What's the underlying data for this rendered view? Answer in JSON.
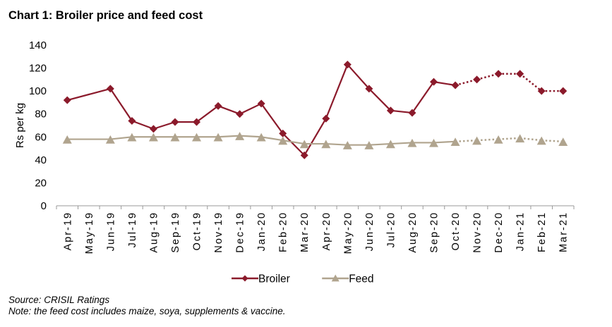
{
  "title": "Chart 1: Broiler price and feed cost",
  "source": "Source: CRISIL Ratings",
  "note": "Note: the feed cost includes maize, soya, supplements & vaccine.",
  "chart_data": {
    "type": "line",
    "title": "Chart 1: Broiler price and feed cost",
    "xlabel": "",
    "ylabel": "Rs per kg",
    "ylim": [
      0,
      140
    ],
    "yticks": [
      "0",
      "20",
      "40",
      "60",
      "80",
      "100",
      "120",
      "140"
    ],
    "ytick_values": [
      0,
      20,
      40,
      60,
      80,
      100,
      120,
      140
    ],
    "grid": false,
    "legend_position": "bottom",
    "categories": [
      "Apr-19",
      "May-19",
      "Jun-19",
      "Jul-19",
      "Aug-19",
      "Sep-19",
      "Oct-19",
      "Nov-19",
      "Dec-19",
      "Jan-20",
      "Feb-20",
      "Mar-20",
      "Apr-20",
      "May-20",
      "Jun-20",
      "Jul-20",
      "Aug-20",
      "Sep-20",
      "Oct-20",
      "Nov-20",
      "Dec-20",
      "Jan-21",
      "Feb-21",
      "Mar-21"
    ],
    "projected_from": "Oct-20",
    "series": [
      {
        "name": "Broiler",
        "color": "#8B1A2B",
        "marker": "diamond",
        "values": [
          92,
          null,
          102,
          74,
          67,
          73,
          73,
          87,
          80,
          89,
          63,
          44,
          76,
          123,
          102,
          83,
          81,
          108,
          105,
          110,
          115,
          115,
          100,
          100
        ]
      },
      {
        "name": "Feed",
        "color": "#B0A48E",
        "marker": "triangle",
        "values": [
          58,
          null,
          58,
          60,
          60,
          60,
          60,
          60,
          61,
          60,
          57,
          54,
          54,
          53,
          53,
          54,
          55,
          55,
          56,
          57,
          58,
          59,
          57,
          56
        ]
      }
    ]
  }
}
